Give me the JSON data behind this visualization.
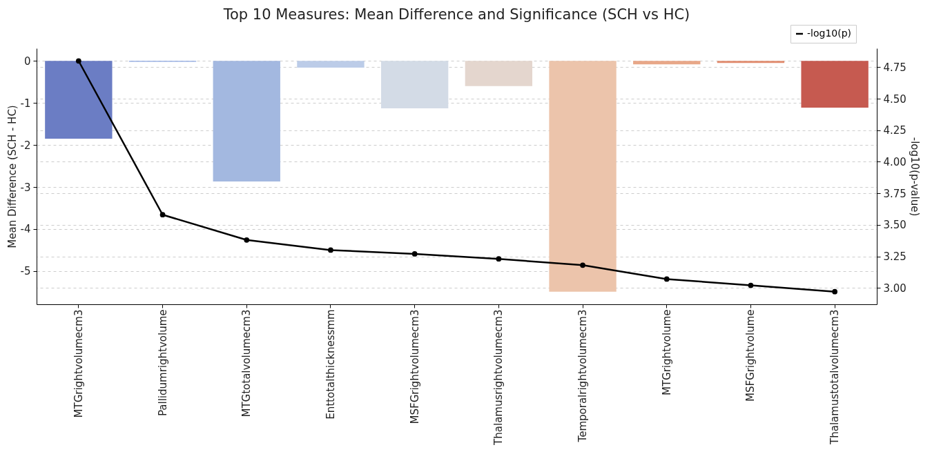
{
  "chart_data": {
    "type": "bar",
    "title": "Top 10 Measures: Mean Difference and Significance (SCH vs HC)",
    "ylabel": "Mean Difference (SCH - HC)",
    "y2label": "-log10(p-value)",
    "categories": [
      "MTGrightvolumecm3",
      "Pallidumrightvolume",
      "MTGtotalvolumecm3",
      "Enttotalthicknessmm",
      "MSFGrightvolumecm3",
      "Thalamusrightvolumecm3",
      "Temporalrightvolumecm3",
      "MTGrightvolume",
      "MSFGrightvolume",
      "Thalamustotalvolumecm3"
    ],
    "series": [
      {
        "colors": [
          "#6b7dc4",
          "#8aa5e0",
          "#a3b8e0",
          "#bccce8",
          "#d3dbe6",
          "#e4d6ce",
          "#ecc4ab",
          "#e8a788",
          "#e18c6f",
          "#c65a50"
        ],
        "values": [
          -1.85,
          -0.02,
          -2.87,
          -0.16,
          -1.13,
          -0.6,
          -5.49,
          -0.08,
          -0.05,
          -1.11
        ]
      },
      {
        "type": "line",
        "name": "-log10(p)",
        "color": "#000000",
        "axis": "y2",
        "marker": "circle",
        "values": [
          4.8,
          3.58,
          3.38,
          3.3,
          3.27,
          3.23,
          3.18,
          3.07,
          3.02,
          2.97
        ]
      }
    ],
    "ylim": [
      -5.79,
      0.3
    ],
    "yticks": [
      -5,
      -4,
      -3,
      -2,
      -1,
      0
    ],
    "y2lim": [
      2.87,
      4.9
    ],
    "y2ticks": [
      {
        "value": 3,
        "label": "3.00"
      },
      3.25,
      {
        "value": 3.5,
        "label": "3.50"
      },
      3.75,
      {
        "value": 4,
        "label": "4.00"
      },
      4.25,
      {
        "value": 4.5,
        "label": "4.50"
      },
      4.75
    ],
    "grid": "y",
    "legend": "top right"
  }
}
